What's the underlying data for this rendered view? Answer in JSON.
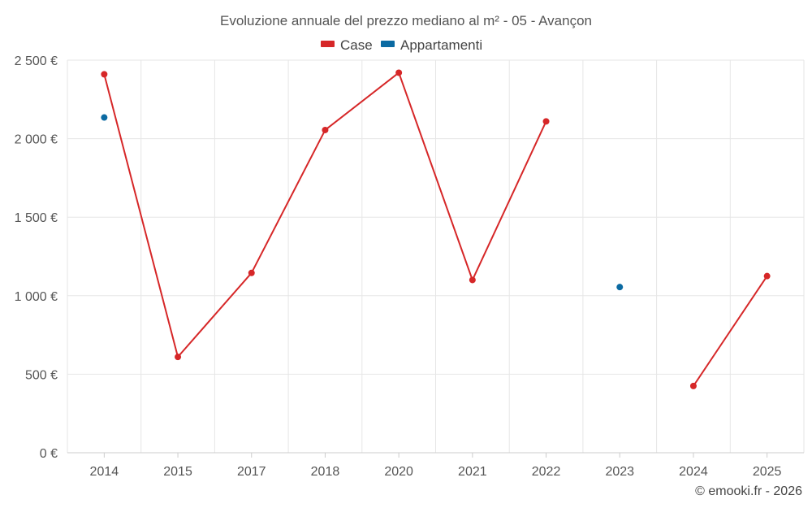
{
  "chart_data": {
    "type": "line",
    "title": "Evoluzione annuale del prezzo mediano al m² - 05 - Avançon",
    "categories": [
      "2014",
      "2015",
      "2017",
      "2018",
      "2020",
      "2021",
      "2022",
      "2023",
      "2024",
      "2025"
    ],
    "series": [
      {
        "name": "Case",
        "color": "#d62728",
        "values": [
          2410,
          610,
          1145,
          2055,
          2420,
          1100,
          2110,
          null,
          425,
          1125
        ]
      },
      {
        "name": "Appartamenti",
        "color": "#0b6aa2",
        "values": [
          2135,
          null,
          null,
          null,
          null,
          null,
          null,
          1055,
          null,
          null
        ]
      }
    ],
    "ylim": [
      0,
      2500
    ],
    "yticks": [
      {
        "value": 0,
        "label": "0 €"
      },
      {
        "value": 500,
        "label": "500 €"
      },
      {
        "value": 1000,
        "label": "1 000 €"
      },
      {
        "value": 1500,
        "label": "1 500 €"
      },
      {
        "value": 2000,
        "label": "2 000 €"
      },
      {
        "value": 2500,
        "label": "2 500 €"
      }
    ],
    "grid": true,
    "legend_position": "top-center"
  },
  "credit": "© emooki.fr - 2026",
  "colors": {
    "grid": "#e6e6e6",
    "axis": "#cccccc"
  }
}
